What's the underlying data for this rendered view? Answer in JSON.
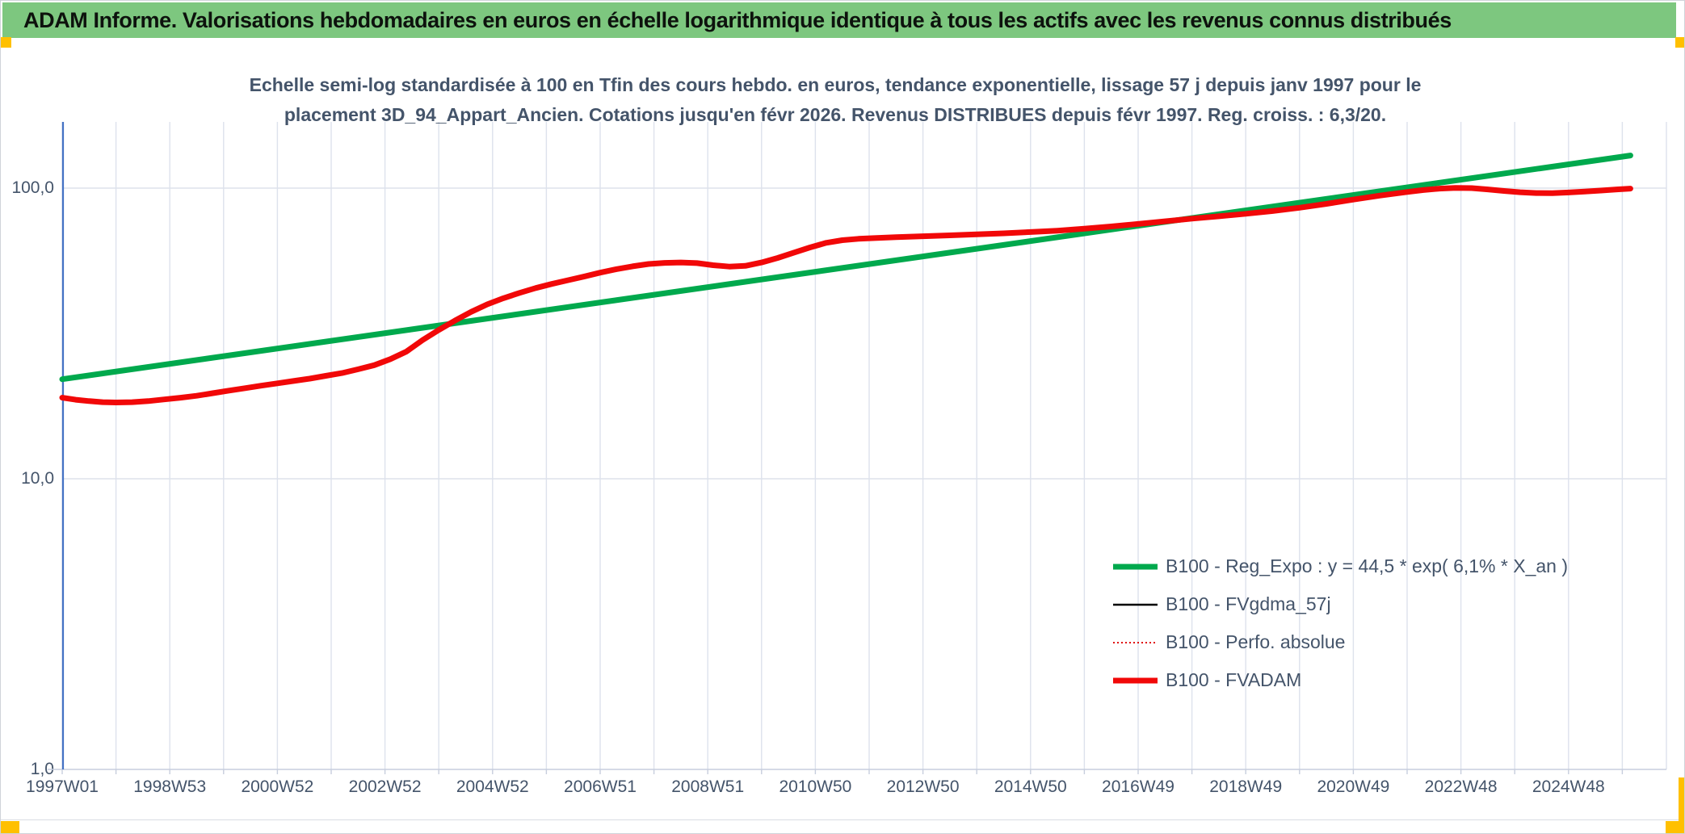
{
  "window": {
    "title": "ADAM Informe. Valorisations hebdomadaires en euros en échelle logarithmique identique à tous les actifs avec les revenus connus distribués"
  },
  "subtitle": {
    "line1": "Echelle semi-log standardisée à 100 en Tfin des cours hebdo. en euros, tendance exponentielle, lissage 57 j depuis janv 1997 pour le",
    "line2": "placement 3D_94_Appart_Ancien. Cotations jusqu'en févr 2026. Revenus DISTRIBUES depuis févr 1997. Reg. croiss. : 6,3/20."
  },
  "colors": {
    "header_green": "#7dc77f",
    "accent_amber": "#FFC000",
    "text_navy": "#44546A",
    "gridline": "#dde2ec",
    "axis_line": "#c7cedd",
    "y_axis_blue": "#4472C4",
    "series_green": "#00A94D",
    "series_red": "#F10808",
    "series_black": "#000000"
  },
  "chart_data": {
    "type": "line",
    "y_scale": "log10",
    "ylim": [
      1,
      200
    ],
    "xlim_years": [
      1997.0,
      2027.0
    ],
    "grid": "on",
    "x_grid_interval_years": 1,
    "legend_position": "inside-right",
    "y_ticks": [
      {
        "value": 100,
        "label": "100,0"
      },
      {
        "value": 10,
        "label": "10,0"
      },
      {
        "value": 1,
        "label": "1,0"
      }
    ],
    "x_ticks": [
      {
        "year": 1997,
        "label": "1997W01"
      },
      {
        "year": 1999,
        "label": "1998W53"
      },
      {
        "year": 2001,
        "label": "2000W52"
      },
      {
        "year": 2003,
        "label": "2002W52"
      },
      {
        "year": 2005,
        "label": "2004W52"
      },
      {
        "year": 2007,
        "label": "2006W51"
      },
      {
        "year": 2009,
        "label": "2008W51"
      },
      {
        "year": 2011,
        "label": "2010W50"
      },
      {
        "year": 2013,
        "label": "2012W50"
      },
      {
        "year": 2015,
        "label": "2014W50"
      },
      {
        "year": 2017,
        "label": "2016W49"
      },
      {
        "year": 2019,
        "label": "2018W49"
      },
      {
        "year": 2021,
        "label": "2020W49"
      },
      {
        "year": 2023,
        "label": "2022W48"
      },
      {
        "year": 2025,
        "label": "2024W48"
      }
    ],
    "series": [
      {
        "key": "reg_expo",
        "name": "B100 - Reg_Expo : y = 44,5 * exp( 6,1% *  X_an )",
        "color": "#00A94D",
        "width": 7,
        "style": "solid",
        "points": [
          [
            1997.0,
            22.0
          ],
          [
            2026.15,
            129.5
          ]
        ]
      },
      {
        "key": "fvgdma_57j",
        "name": "B100 - FVgdma_57j",
        "color": "#000000",
        "width": 2.5,
        "style": "solid",
        "coincides_with": "fvadam"
      },
      {
        "key": "perfo_absolue",
        "name": "B100 - Perfo. absolue",
        "color": "#E01010",
        "width": 2,
        "style": "dotted",
        "coincides_with": "fvadam"
      },
      {
        "key": "fvadam",
        "name": "B100 - FVADAM",
        "color": "#F10808",
        "width": 7,
        "style": "solid",
        "points": [
          [
            1997.0,
            19.0
          ],
          [
            1997.25,
            18.7
          ],
          [
            1997.5,
            18.5
          ],
          [
            1997.75,
            18.35
          ],
          [
            1998.0,
            18.3
          ],
          [
            1998.3,
            18.35
          ],
          [
            1998.6,
            18.5
          ],
          [
            1998.9,
            18.75
          ],
          [
            1999.2,
            19.0
          ],
          [
            1999.5,
            19.3
          ],
          [
            1999.8,
            19.7
          ],
          [
            2000.1,
            20.1
          ],
          [
            2000.4,
            20.5
          ],
          [
            2000.7,
            20.9
          ],
          [
            2001.0,
            21.3
          ],
          [
            2001.3,
            21.7
          ],
          [
            2001.6,
            22.1
          ],
          [
            2001.9,
            22.6
          ],
          [
            2002.2,
            23.1
          ],
          [
            2002.5,
            23.8
          ],
          [
            2002.8,
            24.6
          ],
          [
            2003.1,
            25.8
          ],
          [
            2003.4,
            27.4
          ],
          [
            2003.7,
            30.0
          ],
          [
            2004.0,
            32.5
          ],
          [
            2004.3,
            35.0
          ],
          [
            2004.6,
            37.5
          ],
          [
            2004.9,
            39.8
          ],
          [
            2005.2,
            41.8
          ],
          [
            2005.5,
            43.6
          ],
          [
            2005.8,
            45.3
          ],
          [
            2006.1,
            46.8
          ],
          [
            2006.4,
            48.2
          ],
          [
            2006.7,
            49.6
          ],
          [
            2007.0,
            51.2
          ],
          [
            2007.3,
            52.6
          ],
          [
            2007.6,
            53.8
          ],
          [
            2007.9,
            54.8
          ],
          [
            2008.2,
            55.3
          ],
          [
            2008.5,
            55.5
          ],
          [
            2008.8,
            55.2
          ],
          [
            2009.1,
            54.3
          ],
          [
            2009.4,
            53.7
          ],
          [
            2009.7,
            54.0
          ],
          [
            2010.0,
            55.5
          ],
          [
            2010.3,
            57.5
          ],
          [
            2010.6,
            60.0
          ],
          [
            2010.9,
            62.5
          ],
          [
            2011.2,
            64.8
          ],
          [
            2011.5,
            66.2
          ],
          [
            2011.8,
            66.9
          ],
          [
            2012.1,
            67.3
          ],
          [
            2012.5,
            67.8
          ],
          [
            2013.0,
            68.3
          ],
          [
            2013.5,
            68.8
          ],
          [
            2014.0,
            69.3
          ],
          [
            2014.5,
            69.9
          ],
          [
            2015.0,
            70.6
          ],
          [
            2015.5,
            71.4
          ],
          [
            2016.0,
            72.5
          ],
          [
            2016.5,
            73.8
          ],
          [
            2017.0,
            75.3
          ],
          [
            2017.5,
            76.9
          ],
          [
            2018.0,
            78.5
          ],
          [
            2018.5,
            80.0
          ],
          [
            2019.0,
            81.6
          ],
          [
            2019.5,
            83.4
          ],
          [
            2020.0,
            85.6
          ],
          [
            2020.5,
            88.3
          ],
          [
            2021.0,
            91.3
          ],
          [
            2021.5,
            94.3
          ],
          [
            2022.0,
            97.0
          ],
          [
            2022.3,
            98.5
          ],
          [
            2022.6,
            99.6
          ],
          [
            2022.9,
            100.2
          ],
          [
            2023.2,
            100.0
          ],
          [
            2023.5,
            99.0
          ],
          [
            2023.8,
            97.8
          ],
          [
            2024.1,
            96.8
          ],
          [
            2024.4,
            96.2
          ],
          [
            2024.7,
            96.1
          ],
          [
            2025.0,
            96.6
          ],
          [
            2025.3,
            97.3
          ],
          [
            2025.6,
            98.1
          ],
          [
            2025.9,
            99.0
          ],
          [
            2026.15,
            99.6
          ]
        ]
      }
    ]
  }
}
